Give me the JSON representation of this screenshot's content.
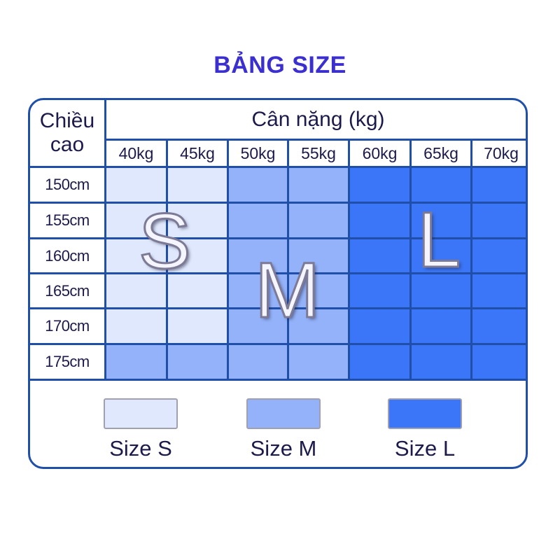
{
  "title": "BẢNG SIZE",
  "height_header": "Chiều cao",
  "weight_header": "Cân nặng (kg)",
  "weights": [
    "40kg",
    "45kg",
    "50kg",
    "55kg",
    "60kg",
    "65kg",
    "70kg"
  ],
  "rows": [
    {
      "height": "150cm",
      "sizes": [
        "S",
        "S",
        "M",
        "M",
        "L",
        "L",
        "L"
      ]
    },
    {
      "height": "155cm",
      "sizes": [
        "S",
        "S",
        "M",
        "M",
        "L",
        "L",
        "L"
      ]
    },
    {
      "height": "160cm",
      "sizes": [
        "S",
        "S",
        "M",
        "M",
        "L",
        "L",
        "L"
      ]
    },
    {
      "height": "165cm",
      "sizes": [
        "S",
        "S",
        "M",
        "M",
        "L",
        "L",
        "L"
      ]
    },
    {
      "height": "170cm",
      "sizes": [
        "S",
        "S",
        "M",
        "M",
        "L",
        "L",
        "L"
      ]
    },
    {
      "height": "175cm",
      "sizes": [
        "M",
        "M",
        "M",
        "M",
        "L",
        "L",
        "L"
      ]
    }
  ],
  "colors": {
    "S": "#dfe8fc",
    "M": "#94b2f9",
    "L": "#3a76f7",
    "border": "#1f4fa8",
    "title": "#3b2fd0"
  },
  "overlay_letters": [
    "S",
    "M",
    "L"
  ],
  "legend": [
    {
      "key": "S",
      "label": "Size S"
    },
    {
      "key": "M",
      "label": "Size M"
    },
    {
      "key": "L",
      "label": "Size L"
    }
  ]
}
